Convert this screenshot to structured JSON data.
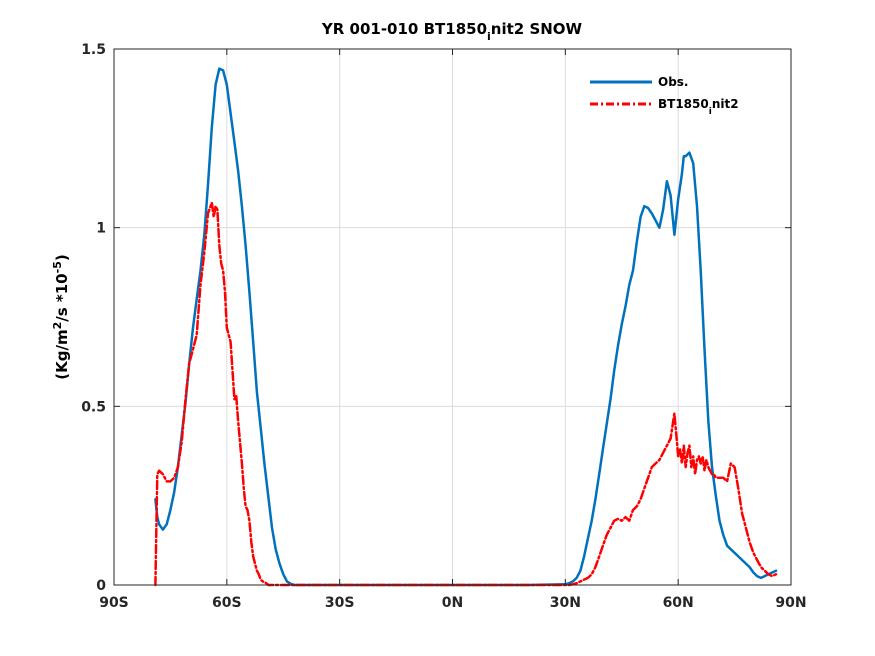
{
  "chart_data": {
    "type": "line",
    "title": {
      "pre": "YR 001-010 BT1850",
      "sub": "i",
      "post": "nit2 SNOW"
    },
    "ylabel": {
      "p1": "(Kg/m",
      "sup1": "2",
      "p2": "/s *10",
      "sup2": "-5",
      "p3": ")"
    },
    "xlim": [
      -90,
      90
    ],
    "ylim": [
      0,
      1.5
    ],
    "xticks": [
      {
        "value": -90,
        "label": "90S"
      },
      {
        "value": -60,
        "label": "60S"
      },
      {
        "value": -30,
        "label": "30S"
      },
      {
        "value": 0,
        "label": "0N"
      },
      {
        "value": 30,
        "label": "30N"
      },
      {
        "value": 60,
        "label": "60N"
      },
      {
        "value": 90,
        "label": "90N"
      }
    ],
    "yticks": [
      {
        "value": 0,
        "label": "0"
      },
      {
        "value": 0.5,
        "label": "0.5"
      },
      {
        "value": 1,
        "label": "1"
      },
      {
        "value": 1.5,
        "label": "1.5"
      }
    ],
    "grid": true,
    "legend_position": "top-right",
    "series": [
      {
        "name": "Obs.",
        "legend": {
          "pre": "Obs.",
          "sub": "",
          "post": ""
        },
        "color": "#0072bd",
        "style": "solid",
        "x": [
          -79,
          -78.5,
          -78,
          -77,
          -76,
          -75,
          -74,
          -73,
          -72,
          -71,
          -70,
          -69,
          -68,
          -67,
          -66,
          -65,
          -64,
          -63,
          -62,
          -61,
          -60,
          -59,
          -58,
          -57,
          -56,
          -55,
          -54,
          -53,
          -52,
          -51,
          -50,
          -49,
          -48,
          -47,
          -46,
          -45,
          -44,
          -43,
          -42,
          -40,
          -30,
          -20,
          -10,
          0,
          10,
          20,
          30,
          31,
          32,
          33,
          34,
          35,
          36,
          37,
          38,
          39,
          40,
          41,
          42,
          43,
          44,
          45,
          46,
          47,
          48,
          49,
          50,
          51,
          52,
          53,
          54,
          55,
          56,
          57,
          58,
          59,
          60,
          61,
          61.5,
          62,
          63,
          64,
          65,
          66,
          67,
          68,
          69,
          70,
          71,
          72,
          73,
          74,
          75,
          76,
          77,
          78,
          79,
          80,
          81,
          82,
          83,
          84,
          85,
          86
        ],
        "y": [
          0.24,
          0.19,
          0.17,
          0.155,
          0.17,
          0.21,
          0.26,
          0.33,
          0.42,
          0.51,
          0.62,
          0.72,
          0.8,
          0.88,
          0.98,
          1.12,
          1.28,
          1.4,
          1.445,
          1.44,
          1.4,
          1.32,
          1.24,
          1.16,
          1.06,
          0.95,
          0.82,
          0.68,
          0.54,
          0.44,
          0.34,
          0.25,
          0.16,
          0.1,
          0.06,
          0.03,
          0.01,
          0.003,
          0.0,
          0.0,
          0.0,
          0.0,
          0.0,
          0.0,
          0.0,
          0.0,
          0.002,
          0.005,
          0.01,
          0.02,
          0.04,
          0.08,
          0.13,
          0.18,
          0.24,
          0.31,
          0.38,
          0.45,
          0.52,
          0.6,
          0.67,
          0.73,
          0.78,
          0.84,
          0.88,
          0.96,
          1.03,
          1.06,
          1.055,
          1.04,
          1.02,
          1.0,
          1.05,
          1.13,
          1.09,
          0.98,
          1.08,
          1.15,
          1.2,
          1.2,
          1.21,
          1.18,
          1.06,
          0.88,
          0.66,
          0.46,
          0.33,
          0.25,
          0.18,
          0.14,
          0.11,
          0.1,
          0.09,
          0.08,
          0.07,
          0.06,
          0.05,
          0.035,
          0.025,
          0.02,
          0.025,
          0.03,
          0.035,
          0.04
        ]
      },
      {
        "name": "BT1850init2",
        "legend": {
          "pre": "BT1850",
          "sub": "i",
          "post": "nit2"
        },
        "color": "#ff0000",
        "style": "dashed",
        "x": [
          -79,
          -78.8,
          -78.5,
          -78,
          -77,
          -76,
          -75,
          -74,
          -73,
          -72,
          -71,
          -70,
          -69,
          -68,
          -67,
          -66,
          -65,
          -64,
          -63.5,
          -63,
          -62.5,
          -62,
          -61.5,
          -61,
          -60.5,
          -60,
          -59.5,
          -59,
          -58.5,
          -58,
          -57.5,
          -57,
          -56.5,
          -56,
          -55.5,
          -55,
          -54.5,
          -54,
          -53.5,
          -53,
          -52.5,
          -52,
          -51.5,
          -51,
          -50.5,
          -50,
          -49.5,
          -49,
          -48,
          -47,
          -46,
          -45,
          -44,
          -43,
          -42,
          -40,
          -30,
          -20,
          -10,
          0,
          10,
          20,
          30,
          31,
          32,
          33,
          34,
          35,
          36,
          37,
          38,
          39,
          40,
          41,
          42,
          43,
          44,
          45,
          46,
          47,
          48,
          49,
          50,
          51,
          52,
          53,
          54,
          55,
          56,
          57,
          58,
          59,
          59.5,
          60,
          60.5,
          61,
          61.5,
          62,
          62.5,
          63,
          63.5,
          64,
          64.5,
          65,
          65.5,
          66,
          66.5,
          67,
          67.5,
          68,
          68.5,
          69,
          69.5,
          70,
          71,
          72,
          73,
          74,
          75,
          76,
          77,
          78,
          79,
          80,
          81,
          82,
          83,
          84,
          85,
          86
        ],
        "y": [
          0.0,
          0.12,
          0.31,
          0.32,
          0.31,
          0.29,
          0.29,
          0.3,
          0.33,
          0.4,
          0.52,
          0.62,
          0.66,
          0.7,
          0.84,
          0.93,
          1.04,
          1.07,
          1.03,
          1.06,
          1.05,
          0.95,
          0.9,
          0.88,
          0.82,
          0.72,
          0.7,
          0.68,
          0.6,
          0.52,
          0.53,
          0.46,
          0.4,
          0.34,
          0.27,
          0.22,
          0.21,
          0.18,
          0.12,
          0.08,
          0.06,
          0.04,
          0.03,
          0.015,
          0.01,
          0.008,
          0.005,
          0.0,
          0.0,
          0.0,
          0.0,
          0.0,
          0.0,
          0.0,
          0.0,
          0.0,
          0.0,
          0.0,
          0.0,
          0.0,
          0.0,
          0.0,
          0.0,
          0.0,
          0.002,
          0.005,
          0.01,
          0.015,
          0.02,
          0.03,
          0.05,
          0.08,
          0.11,
          0.14,
          0.16,
          0.18,
          0.185,
          0.18,
          0.19,
          0.18,
          0.21,
          0.22,
          0.24,
          0.27,
          0.3,
          0.33,
          0.34,
          0.35,
          0.37,
          0.39,
          0.41,
          0.48,
          0.42,
          0.36,
          0.38,
          0.34,
          0.39,
          0.33,
          0.37,
          0.39,
          0.33,
          0.36,
          0.31,
          0.35,
          0.36,
          0.34,
          0.36,
          0.32,
          0.35,
          0.33,
          0.32,
          0.31,
          0.31,
          0.3,
          0.3,
          0.3,
          0.29,
          0.34,
          0.33,
          0.27,
          0.2,
          0.16,
          0.12,
          0.09,
          0.07,
          0.05,
          0.04,
          0.03,
          0.025,
          0.03
        ]
      }
    ]
  }
}
